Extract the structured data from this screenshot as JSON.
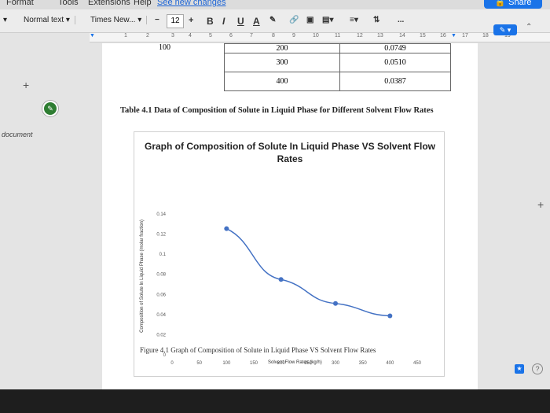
{
  "menu": {
    "items": [
      "Format",
      "Tools",
      "Extensions",
      "Help"
    ],
    "see_new_changes": "See new changes",
    "share_label": "Share"
  },
  "toolbar": {
    "style": "Normal text",
    "font": "Times New...",
    "font_size": "12",
    "bold": "B",
    "italic": "I",
    "underline": "U",
    "text_color": "A",
    "more": "..."
  },
  "ruler": {
    "ticks": [
      "1",
      "2",
      "3",
      "4",
      "5",
      "6",
      "7",
      "8",
      "9",
      "10",
      "11",
      "12",
      "13",
      "14",
      "15",
      "16",
      "17",
      "18",
      "19"
    ]
  },
  "left": {
    "document_label": "document"
  },
  "table": {
    "partial_row": {
      "left": "100",
      "mid": "200",
      "right": "0.0749"
    },
    "rows": [
      {
        "rate": "300",
        "value": "0.0510"
      },
      {
        "rate": "400",
        "value": "0.0387"
      }
    ],
    "caption": "Table 4.1 Data of Composition of Solute in Liquid Phase for Different Solvent Flow Rates"
  },
  "chart_data": {
    "type": "line",
    "title": "Graph of Composition of Solute In Liquid Phase VS Solvent Flow Rates",
    "xlabel": "Solvent Flow Rates (kg/h)",
    "ylabel": "Composition of Solute In Liquid Phase (molar fraction)",
    "x_ticks": [
      "0",
      "50",
      "100",
      "150",
      "200",
      "250",
      "300",
      "350",
      "400",
      "450"
    ],
    "y_ticks": [
      "0",
      "0.02",
      "0.04",
      "0.06",
      "0.08",
      "0.1",
      "0.12",
      "0.14"
    ],
    "xlim": [
      0,
      450
    ],
    "ylim": [
      0,
      0.14
    ],
    "x": [
      100,
      200,
      300,
      400
    ],
    "y": [
      0.1254,
      0.0749,
      0.051,
      0.0387
    ],
    "line_color": "#4472c4",
    "grid": false
  },
  "figure_caption": "Figure 4.1 Graph of Composition of Solute in Liquid Phase VS Solvent Flow Rates",
  "colors": {
    "accent": "#1a73e8"
  }
}
